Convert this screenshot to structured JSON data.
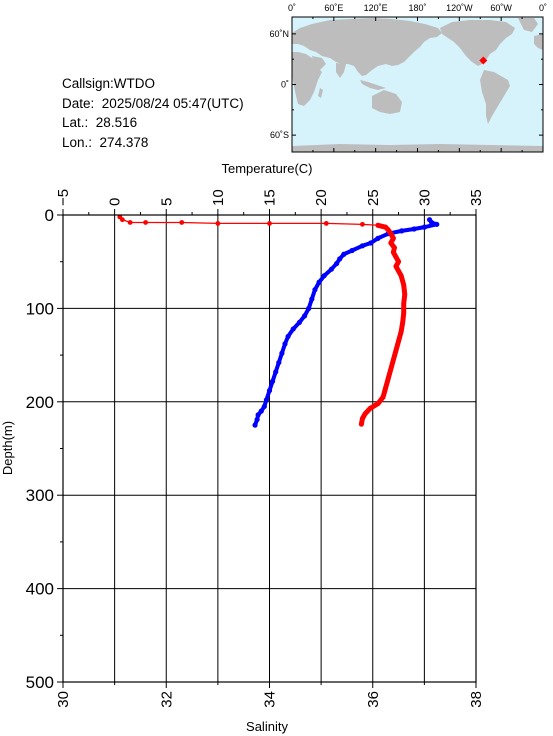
{
  "station": {
    "callsign_label": "Callsign:",
    "callsign": "WTDO",
    "date_label": "Date:",
    "date": "2025/08/24 05:47(UTC)",
    "lat_label": "Lat.:",
    "lat": "28.516",
    "lon_label": "Lon.:",
    "lon": "274.378"
  },
  "map": {
    "lon_ticks": [
      "0˚",
      "60˚E",
      "120˚E",
      "180˚",
      "120˚W",
      "60˚W",
      "0˚"
    ],
    "lat_ticks": [
      "60˚N",
      "0˚",
      "60˚S"
    ],
    "ocean_color": "#d6f3fc",
    "land_color": "#bdbdbd",
    "marker_color": "#ff0000",
    "marker": {
      "lat": 28.516,
      "lon": 274.378
    }
  },
  "chart_data": {
    "type": "line",
    "top_axis": {
      "label": "Temperature(C)",
      "range": [
        -5,
        35
      ],
      "ticks": [
        "−5",
        "0",
        "5",
        "10",
        "15",
        "20",
        "25",
        "30",
        "35"
      ]
    },
    "bottom_axis": {
      "label": "Salinity",
      "range": [
        30,
        38
      ],
      "ticks": [
        "30",
        "32",
        "34",
        "36",
        "38"
      ]
    },
    "y_axis": {
      "label": "Depth(m)",
      "range": [
        0,
        500
      ],
      "inverted": true,
      "ticks": [
        "0",
        "100",
        "200",
        "300",
        "400",
        "500"
      ]
    },
    "grid": true,
    "series": [
      {
        "color": "#0000ff",
        "axis": "temperature",
        "points": [
          [
            30.5,
            5
          ],
          [
            30.7,
            8
          ],
          [
            31.2,
            10
          ],
          [
            30.0,
            13
          ],
          [
            29.0,
            15
          ],
          [
            27.8,
            17
          ],
          [
            26.5,
            20
          ],
          [
            25.5,
            25
          ],
          [
            24.8,
            30
          ],
          [
            24.0,
            33
          ],
          [
            23.0,
            38
          ],
          [
            22.2,
            42
          ],
          [
            21.8,
            47
          ],
          [
            21.5,
            52
          ],
          [
            21.0,
            58
          ],
          [
            20.3,
            65
          ],
          [
            19.8,
            72
          ],
          [
            19.4,
            80
          ],
          [
            19.1,
            90
          ],
          [
            18.8,
            100
          ],
          [
            18.4,
            108
          ],
          [
            17.9,
            115
          ],
          [
            17.3,
            122
          ],
          [
            16.8,
            130
          ],
          [
            16.5,
            138
          ],
          [
            16.2,
            148
          ],
          [
            15.9,
            158
          ],
          [
            15.6,
            168
          ],
          [
            15.3,
            178
          ],
          [
            15.0,
            188
          ],
          [
            14.7,
            198
          ],
          [
            14.5,
            205
          ],
          [
            14.2,
            210
          ],
          [
            13.9,
            214
          ],
          [
            13.8,
            219
          ],
          [
            13.6,
            225
          ]
        ]
      },
      {
        "color": "#ff0000",
        "axis": "salinity",
        "points": [
          [
            31.1,
            2
          ],
          [
            31.15,
            5
          ],
          [
            31.3,
            8
          ],
          [
            31.6,
            8
          ],
          [
            32.3,
            8
          ],
          [
            33.0,
            9
          ],
          [
            34.0,
            9
          ],
          [
            35.1,
            9
          ],
          [
            35.8,
            10
          ],
          [
            36.1,
            11
          ],
          [
            36.25,
            13
          ],
          [
            36.3,
            16
          ],
          [
            36.35,
            20
          ],
          [
            36.4,
            25
          ],
          [
            36.35,
            30
          ],
          [
            36.42,
            35
          ],
          [
            36.4,
            40
          ],
          [
            36.45,
            45
          ],
          [
            36.5,
            50
          ],
          [
            36.45,
            55
          ],
          [
            36.5,
            60
          ],
          [
            36.55,
            65
          ],
          [
            36.6,
            75
          ],
          [
            36.62,
            85
          ],
          [
            36.6,
            95
          ],
          [
            36.6,
            105
          ],
          [
            36.58,
            115
          ],
          [
            36.55,
            125
          ],
          [
            36.5,
            135
          ],
          [
            36.45,
            145
          ],
          [
            36.4,
            155
          ],
          [
            36.35,
            165
          ],
          [
            36.3,
            175
          ],
          [
            36.25,
            185
          ],
          [
            36.2,
            195
          ],
          [
            36.1,
            202
          ],
          [
            35.95,
            207
          ],
          [
            35.85,
            213
          ],
          [
            35.8,
            218
          ],
          [
            35.78,
            224
          ]
        ]
      }
    ]
  }
}
